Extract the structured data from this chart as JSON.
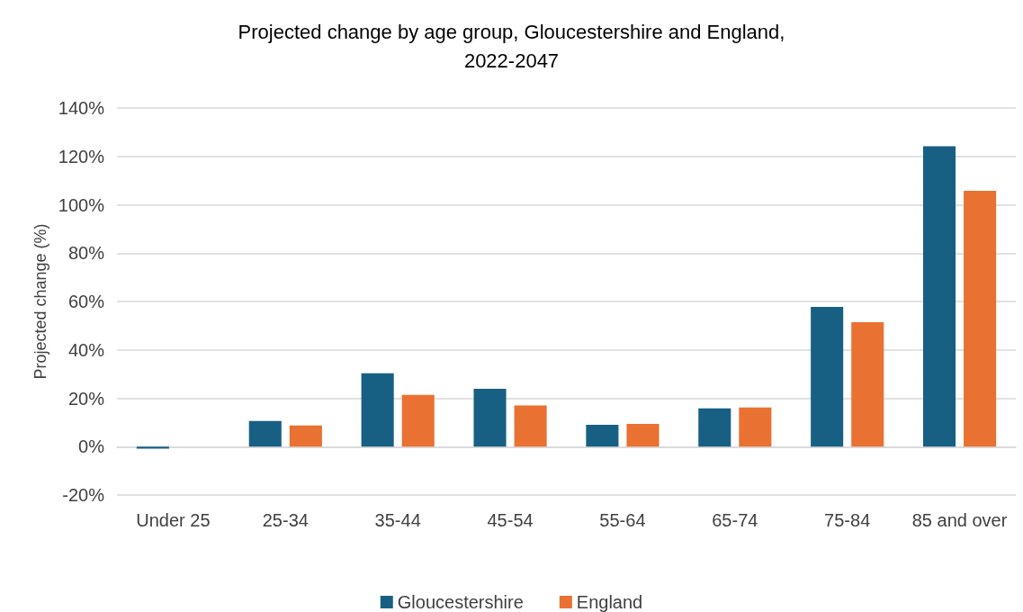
{
  "chart_data": {
    "type": "bar",
    "title": "Projected change by age group, Gloucestershire and England,\n2022-2047",
    "ylabel": "Projected change (%)",
    "categories": [
      "Under 25",
      "25-34",
      "35-44",
      "45-54",
      "55-64",
      "65-74",
      "75-84",
      "85 and over"
    ],
    "series": [
      {
        "name": "Gloucestershire",
        "color": "#176083",
        "values": [
          -0.8,
          10.6,
          30.3,
          23.9,
          9.0,
          15.8,
          57.8,
          124.2
        ]
      },
      {
        "name": "England",
        "color": "#e97132",
        "values": [
          0,
          8.7,
          21.4,
          17.0,
          9.4,
          16.2,
          51.4,
          105.8
        ]
      }
    ],
    "ylim": [
      -20,
      140
    ],
    "yticks": [
      {
        "value": -20,
        "label": "-20%"
      },
      {
        "value": 0,
        "label": "0%"
      },
      {
        "value": 20,
        "label": "20%"
      },
      {
        "value": 40,
        "label": "40%"
      },
      {
        "value": 60,
        "label": "60%"
      },
      {
        "value": 80,
        "label": "80%"
      },
      {
        "value": 100,
        "label": "100%"
      },
      {
        "value": 120,
        "label": "120%"
      },
      {
        "value": 140,
        "label": "140%"
      }
    ],
    "grid": true,
    "legend": "bottom"
  }
}
